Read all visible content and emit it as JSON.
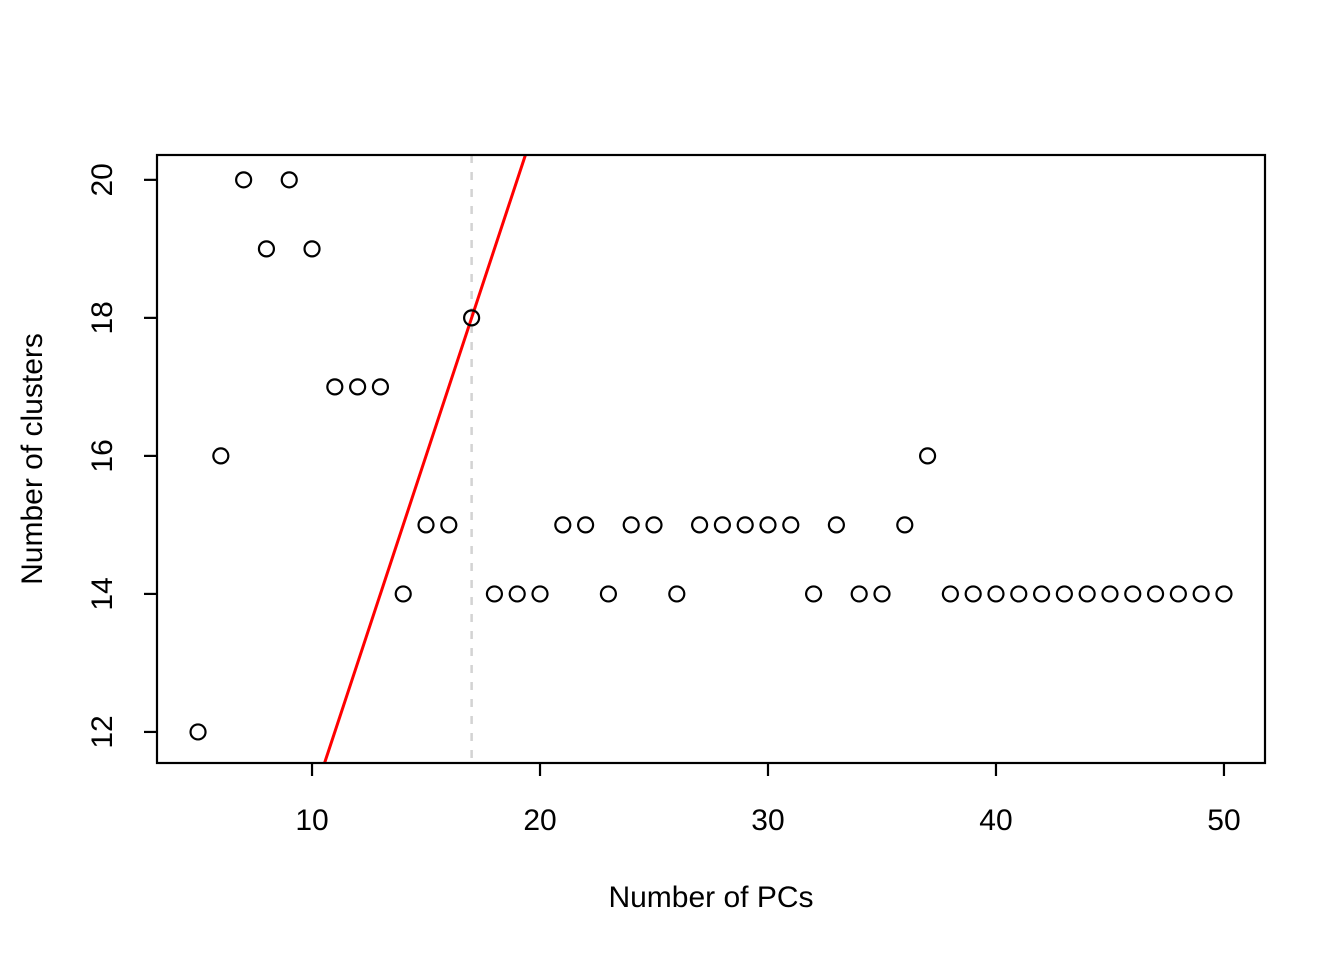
{
  "colors": {
    "point_stroke": "#000000",
    "fit_line": "#ff0000",
    "reference_line": "#d3d3d3",
    "axis": "#000000",
    "background": "#ffffff"
  },
  "chart_data": {
    "type": "scatter",
    "title": "",
    "xlabel": "Number of PCs",
    "ylabel": "Number of clusters",
    "x": [
      5,
      6,
      7,
      8,
      9,
      10,
      11,
      12,
      13,
      14,
      15,
      16,
      17,
      18,
      19,
      20,
      21,
      22,
      23,
      24,
      25,
      26,
      27,
      28,
      29,
      30,
      31,
      32,
      33,
      34,
      35,
      36,
      37,
      38,
      39,
      40,
      41,
      42,
      43,
      44,
      45,
      46,
      47,
      48,
      49,
      50
    ],
    "y": [
      12,
      16,
      20,
      19,
      20,
      19,
      17,
      17,
      17,
      14,
      15,
      15,
      18,
      14,
      14,
      14,
      15,
      15,
      14,
      15,
      15,
      14,
      15,
      15,
      15,
      15,
      15,
      14,
      15,
      14,
      14,
      15,
      16,
      14,
      14,
      14,
      14,
      14,
      14,
      14,
      14,
      14,
      14,
      14,
      14,
      14
    ],
    "x_ticks": [
      10,
      20,
      30,
      40,
      50
    ],
    "y_ticks": [
      12,
      14,
      16,
      18,
      20
    ],
    "xlim": [
      3.2,
      51.8
    ],
    "ylim": [
      11.55,
      20.36
    ],
    "grid": false,
    "legend": "none",
    "marker": "open-circle",
    "reference_lines": {
      "vertical_dashed": {
        "x": 17,
        "color": "#d3d3d3",
        "style": "dashed"
      },
      "diagonal_fit": {
        "slope": 1,
        "intercept": 1,
        "color": "#ff0000",
        "style": "solid"
      }
    }
  }
}
